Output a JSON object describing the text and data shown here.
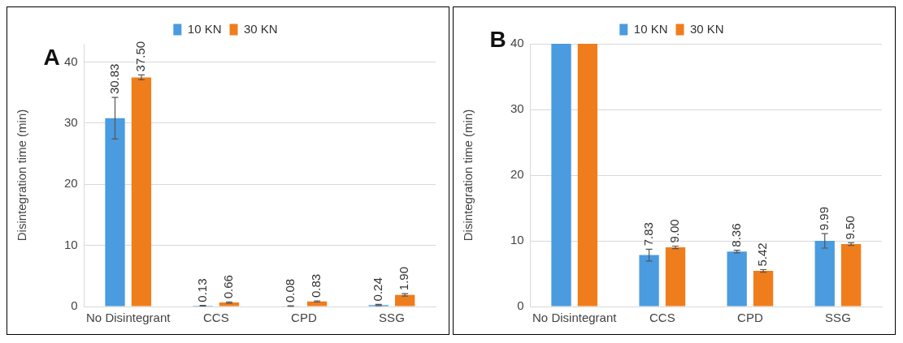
{
  "chart_data": [
    {
      "type": "bar",
      "title": "A",
      "ylabel": "Disintegration time (min)",
      "categories": [
        "No Disintegrant",
        "CCS",
        "CPD",
        "SSG"
      ],
      "ylim": [
        0,
        43
      ],
      "yticks": [
        0,
        10,
        20,
        30,
        40
      ],
      "grid": "y",
      "legend": "top",
      "series": [
        {
          "name": "10 KN",
          "color": "#4a9be0",
          "values": [
            30.83,
            0.13,
            0.08,
            0.24
          ],
          "errors": [
            3.4,
            0.05,
            0.05,
            0.1
          ],
          "value_labels": [
            "30.83",
            "0.13",
            "0.08",
            "0.24"
          ]
        },
        {
          "name": "30 KN",
          "color": "#f07d1c",
          "values": [
            37.5,
            0.66,
            0.83,
            1.9
          ],
          "errors": [
            0.4,
            0.1,
            0.1,
            0.2
          ],
          "value_labels": [
            "37.50",
            "0.66",
            "0.83",
            "1.90"
          ]
        }
      ]
    },
    {
      "type": "bar",
      "title": "B",
      "ylabel": "Disintegration time (min)",
      "categories": [
        "No Disintegrant",
        "CCS",
        "CPD",
        "SSG"
      ],
      "ylim": [
        0,
        40
      ],
      "yticks": [
        0,
        10,
        20,
        30,
        40
      ],
      "grid": "y",
      "legend": "top",
      "series": [
        {
          "name": "10 KN",
          "color": "#4a9be0",
          "values": [
            40,
            7.83,
            8.36,
            9.99
          ],
          "errors": [
            null,
            0.9,
            0.2,
            1.1
          ],
          "value_labels": [
            null,
            "7.83",
            "8.36",
            "9.99"
          ]
        },
        {
          "name": "30 KN",
          "color": "#f07d1c",
          "values": [
            40,
            9.0,
            5.42,
            9.5
          ],
          "errors": [
            null,
            0.2,
            0.2,
            0.2
          ],
          "value_labels": [
            null,
            "9.00",
            "5.42",
            "9.50"
          ]
        }
      ]
    }
  ]
}
